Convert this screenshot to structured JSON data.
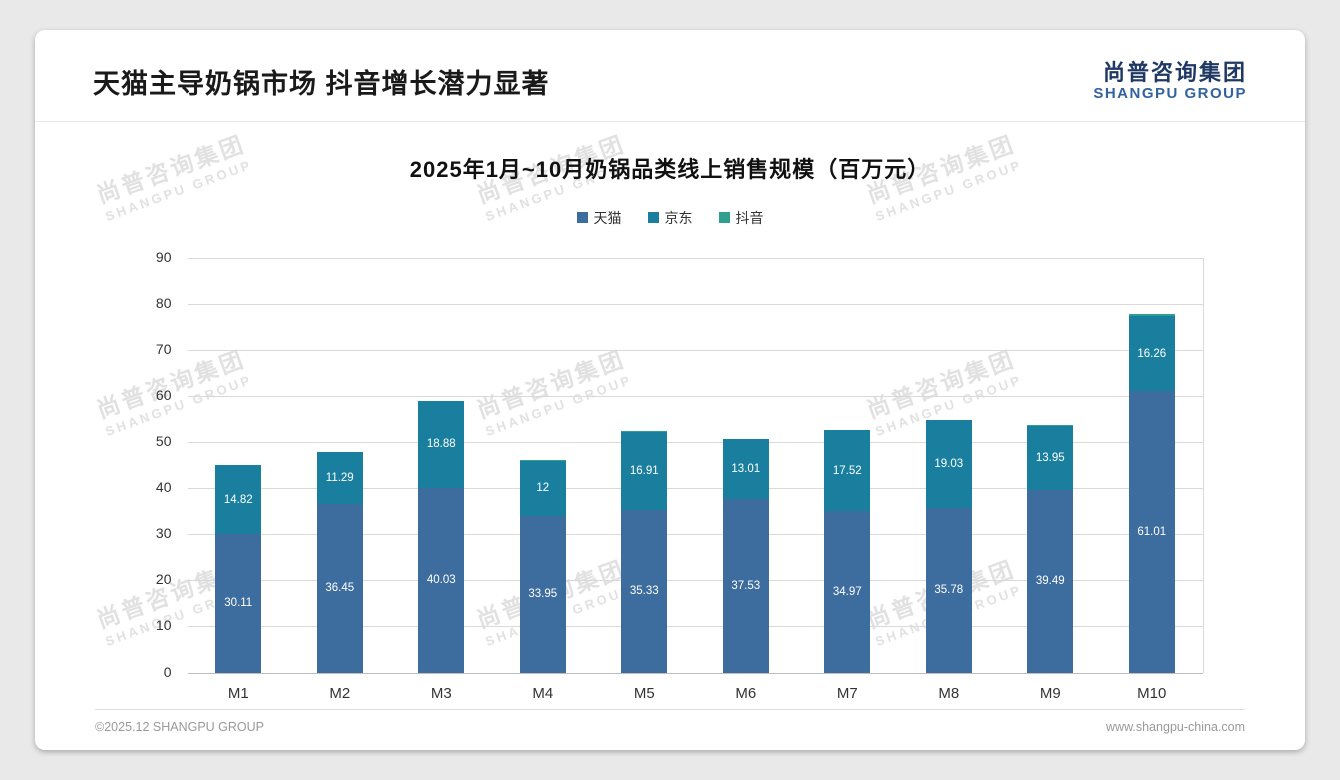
{
  "page": {
    "slide_title": "天猫主导奶锅市场 抖音增长潜力显著",
    "logo": {
      "cn": "尚普咨询集团",
      "en": "SHANGPU GROUP"
    },
    "watermark": {
      "cn": "尚普咨询集团",
      "en": "SHANGPU GROUP"
    },
    "footer": {
      "left": "©2025.12 SHANGPU GROUP",
      "right": "www.shangpu-china.com"
    }
  },
  "chart_data": {
    "type": "bar",
    "stacked": true,
    "title": "2025年1月~10月奶锅品类线上销售规模（百万元）",
    "categories": [
      "M1",
      "M2",
      "M3",
      "M4",
      "M5",
      "M6",
      "M7",
      "M8",
      "M9",
      "M10"
    ],
    "series": [
      {
        "name": "天猫",
        "color": "#3d6c9e",
        "label_color": "#ffffff",
        "values": [
          30.11,
          36.45,
          40.03,
          33.95,
          35.33,
          37.53,
          34.97,
          35.78,
          39.49,
          61.01
        ],
        "labels": [
          "30.11",
          "36.45",
          "40.03",
          "33.95",
          "35.33",
          "37.53",
          "34.97",
          "35.78",
          "39.49",
          "61.01"
        ]
      },
      {
        "name": "京东",
        "color": "#1a7f9e",
        "label_color": "#ffffff",
        "values": [
          14.82,
          11.29,
          18.88,
          12,
          16.91,
          13.01,
          17.52,
          19.03,
          13.95,
          16.26
        ],
        "labels": [
          "14.82",
          "11.29",
          "18.88",
          "12",
          "16.91",
          "13.01",
          "17.52",
          "19.03",
          "13.95",
          "16.26"
        ]
      },
      {
        "name": "抖音",
        "color": "#2f9f8f",
        "label_color": "#333333",
        "values": [
          0.11,
          0.09,
          0.08,
          0.08,
          0.12,
          0.17,
          0.06,
          0.05,
          0.23,
          0.46
        ],
        "labels": [
          "0.11",
          "0.09",
          "0.08",
          "0.08",
          "0.12",
          "0.17",
          "0.06",
          "0.05",
          "0.23",
          "0.46"
        ]
      }
    ],
    "ylim": [
      0,
      90
    ],
    "ytick_step": 10,
    "legend_position": "top",
    "grid": true
  }
}
